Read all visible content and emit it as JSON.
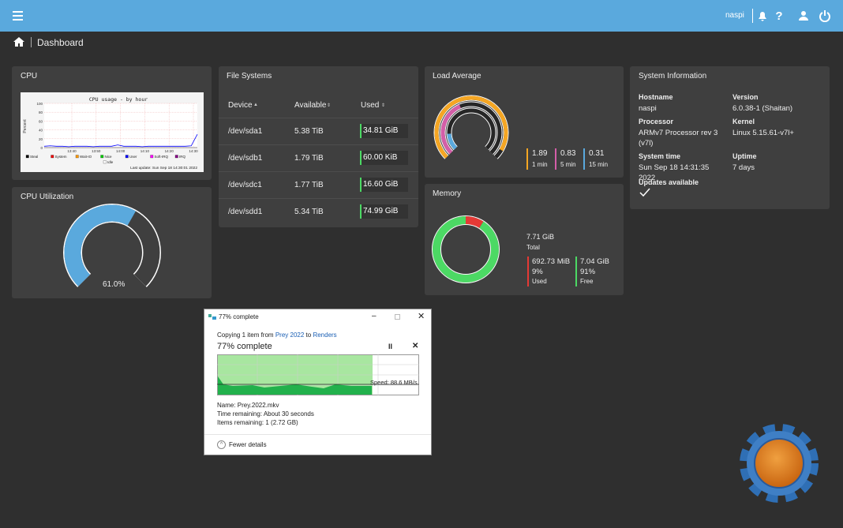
{
  "topbar": {
    "user": "naspi"
  },
  "breadcrumb": {
    "page": "Dashboard"
  },
  "cpu": {
    "title": "CPU",
    "graph": {
      "title": "CPU usage - by hour",
      "y_label": "Percent",
      "ylim": [
        0,
        100
      ],
      "yticks": [
        0,
        20,
        40,
        60,
        80,
        100
      ],
      "xticks": [
        "13:40",
        "13:50",
        "14:00",
        "14:10",
        "14:20",
        "14:30"
      ],
      "legend": [
        {
          "name": "Steal",
          "color": "#000000"
        },
        {
          "name": "System",
          "color": "#ee0000"
        },
        {
          "name": "Wait-IO",
          "color": "#ff9900"
        },
        {
          "name": "Nice",
          "color": "#00cc00"
        },
        {
          "name": "User",
          "color": "#0000ff"
        },
        {
          "name": "Soft-IRQ",
          "color": "#ff00ff"
        },
        {
          "name": "IRQ",
          "color": "#880088"
        },
        {
          "name": "Idle",
          "color": "#ffffff"
        }
      ],
      "values": [
        3,
        4,
        3,
        3,
        2,
        3,
        3,
        3,
        2,
        3,
        3,
        3,
        6,
        3,
        3,
        3,
        2,
        3,
        3,
        3,
        3,
        3,
        3,
        3,
        4,
        30
      ],
      "last_update": "Last update: Sun Sep 18 14:30:01 2022"
    }
  },
  "cpu_utilization": {
    "title": "CPU Utilization",
    "value": 61,
    "label": "61.0%"
  },
  "file_systems": {
    "title": "File Systems",
    "columns": [
      "Device",
      "Available",
      "Used"
    ],
    "rows": [
      [
        "/dev/sda1",
        "5.38 TiB",
        "34.81 GiB"
      ],
      [
        "/dev/sdb1",
        "1.79 TiB",
        "60.00 KiB"
      ],
      [
        "/dev/sdc1",
        "1.77 TiB",
        "16.60 GiB"
      ],
      [
        "/dev/sdd1",
        "5.34 TiB",
        "74.99 GiB"
      ]
    ]
  },
  "load_average": {
    "title": "Load Average",
    "items": [
      {
        "value": 1.89,
        "period": "1 min",
        "color": "#f5a623"
      },
      {
        "value": 0.83,
        "period": "5 min",
        "color": "#d45ea8"
      },
      {
        "value": 0.31,
        "period": "15 min",
        "color": "#5aa9dd"
      }
    ]
  },
  "memory": {
    "title": "Memory",
    "total": "7.71 GiB",
    "total_label": "Total",
    "used": {
      "amount": "692.73 MiB",
      "percent": 9,
      "percent_label": "9%",
      "label": "Used",
      "color": "#e53935"
    },
    "free": {
      "amount": "7.04 GiB",
      "percent": 91,
      "percent_label": "91%",
      "label": "Free",
      "color": "#4cd964"
    }
  },
  "system_information": {
    "title": "System Information",
    "fields": [
      {
        "label": "Hostname",
        "value": "naspi"
      },
      {
        "label": "Version",
        "value": "6.0.38-1 (Shaitan)"
      },
      {
        "label": "Processor",
        "value": "ARMv7 Processor rev 3 (v7l)"
      },
      {
        "label": "Kernel",
        "value": "Linux 5.15.61-v7l+"
      },
      {
        "label": "System time",
        "value": "Sun Sep 18 14:31:35 2022"
      },
      {
        "label": "Uptime",
        "value": "7 days"
      }
    ],
    "updates": "Updates available"
  },
  "copy_dialog": {
    "window_title": "77% complete",
    "copying": "Copying 1 item from",
    "source": "Prey 2022",
    "to": "to",
    "destination": "Renders",
    "heading": "77% complete",
    "speed": "Speed: 88.6 MB/s",
    "name": "Name: Prey.2022.mkv",
    "time_remaining": "Time remaining: About 30 seconds",
    "items_remaining": "Items remaining: 1 (2.72 GB)",
    "details_toggle": "Fewer details"
  }
}
